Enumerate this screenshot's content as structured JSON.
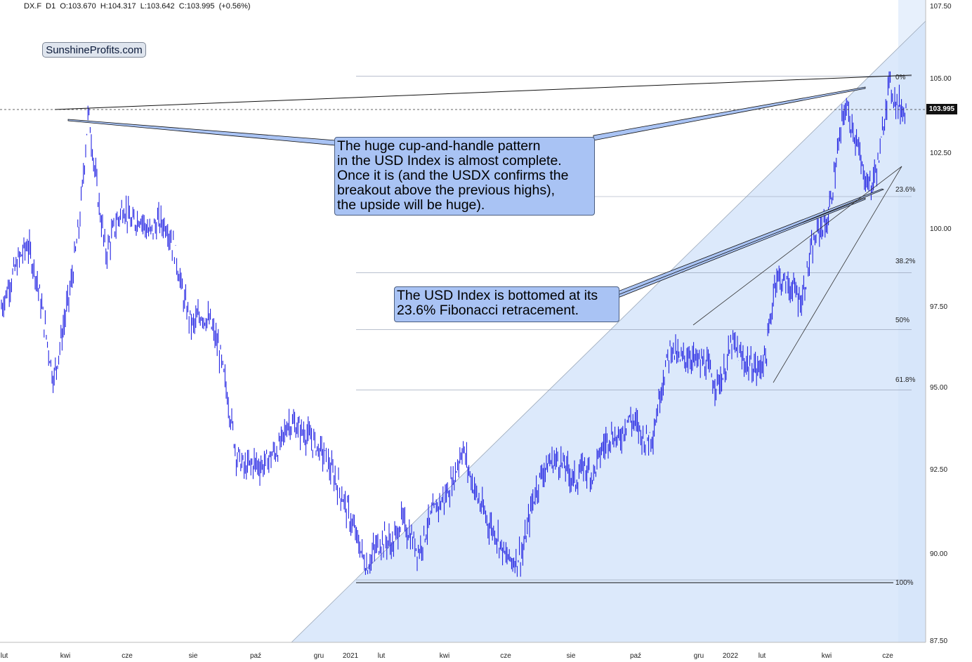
{
  "header": {
    "text": "DX.F  D1  O:103.670  H:104.317  L:103.642  C:103.995  (+0.56%)"
  },
  "watermark": "SunshineProfits.com",
  "callouts": {
    "cup_handle": "The huge cup-and-handle pattern\nin the USD Index is almost complete.\nOnce it is (and the USDX confirms the\nbreakout above the previous highs),\nthe upside will be huge).",
    "fib": "The USD Index is bottomed at its\n23.6% Fibonacci retracement."
  },
  "current_price_label": "103.995",
  "colors": {
    "candles": "#1010e0",
    "fib_fill": "#dce9fb",
    "callout_bg": "#a9c3f4",
    "lines": "#111111"
  },
  "chart_data": {
    "type": "line",
    "title": "",
    "ylim": [
      87.5,
      107.5
    ],
    "y_ticks": [
      "107.50",
      "105.00",
      "102.50",
      "100.00",
      "97.50",
      "95.00",
      "92.50",
      "90.00",
      "87.50"
    ],
    "x_ticks": [
      "lut",
      "kwi",
      "cze",
      "sie",
      "paź",
      "gru",
      "2021",
      "lut",
      "kwi",
      "cze",
      "sie",
      "paź",
      "gru",
      "2022",
      "lut",
      "kwi",
      "cze"
    ],
    "fibonacci_levels": [
      {
        "label": "0%",
        "value": 105.1
      },
      {
        "label": "23.6%",
        "value": 101.3
      },
      {
        "label": "38.2%",
        "value": 98.9
      },
      {
        "label": "50%",
        "value": 97.1
      },
      {
        "label": "61.8%",
        "value": 95.2
      },
      {
        "label": "100%",
        "value": 89.2
      }
    ],
    "current_price": 103.995,
    "series": [
      {
        "values": [
          97.8,
          98.6,
          99.3,
          99.8,
          98.8,
          97.2,
          95.5,
          97.0,
          98.5,
          100.5,
          104.0,
          101.5,
          99.5,
          100.3,
          101.0,
          100.4,
          100.7,
          100.1,
          100.5,
          100.4,
          99.5,
          98.0,
          97.2,
          97.6,
          97.3,
          96.5,
          95.0,
          93.2,
          92.7,
          92.9,
          92.8,
          93.1,
          93.4,
          94.2,
          94.0,
          93.8,
          93.5,
          93.2,
          92.6,
          92.0,
          91.2,
          90.4,
          89.6,
          90.2,
          90.5,
          90.3,
          91.1,
          90.6,
          90.1,
          90.9,
          91.5,
          91.8,
          92.4,
          93.4,
          92.4,
          91.6,
          91.0,
          90.6,
          89.9,
          89.8,
          90.1,
          91.6,
          92.5,
          92.9,
          93.0,
          92.7,
          92.3,
          92.8,
          92.5,
          93.3,
          93.8,
          93.6,
          94.3,
          94.1,
          93.6,
          93.9,
          95.5,
          96.6,
          96.1,
          96.3,
          96.1,
          96.0,
          95.4,
          95.6,
          96.7,
          96.2,
          96.0,
          95.8,
          96.4,
          98.8,
          98.6,
          98.4,
          98.0,
          99.4,
          100.3,
          100.5,
          102.4,
          104.2,
          103.4,
          102.1,
          101.6,
          102.6,
          104.9,
          104.2,
          103.995
        ]
      }
    ]
  }
}
